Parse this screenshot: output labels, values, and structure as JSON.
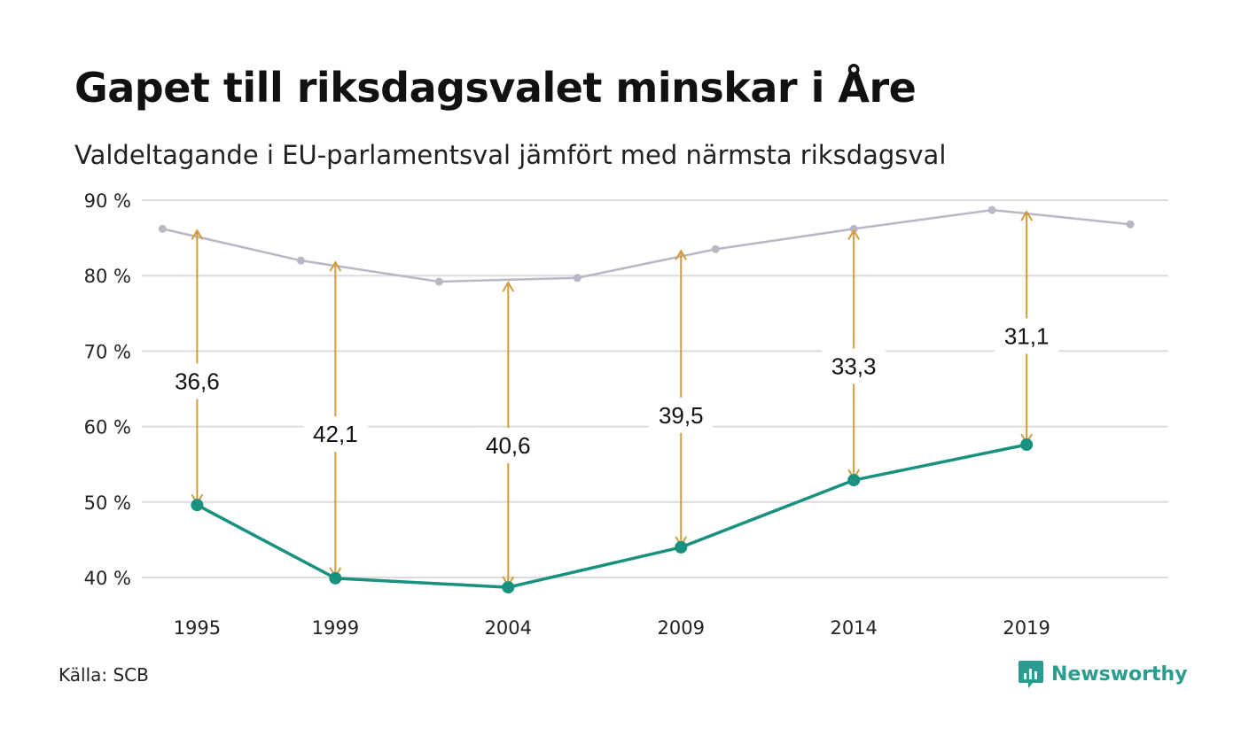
{
  "title": "Gapet till riksdagsvalet minskar i Åre",
  "subtitle": "Valdeltagande i EU-parlamentsval jämfört med närmsta riksdagsval",
  "source": "Källa: SCB",
  "brand": {
    "name": "Newsworthy",
    "icon": "newsworthy-logo-icon"
  },
  "colors": {
    "eu": "#18917f",
    "riksdag": "#b9b7c4",
    "gap": "#d39b3f",
    "grid": "#dcdcdc"
  },
  "chart_data": {
    "type": "line",
    "x_range": [
      1993.4,
      2023.1
    ],
    "ylim": [
      35,
      90
    ],
    "y_ticks": [
      {
        "value": 40,
        "label": "40 %"
      },
      {
        "value": 50,
        "label": "50 %"
      },
      {
        "value": 60,
        "label": "60 %"
      },
      {
        "value": 70,
        "label": "70 %"
      },
      {
        "value": 80,
        "label": "80 %"
      },
      {
        "value": 90,
        "label": "90 %"
      }
    ],
    "x_ticks": [
      {
        "value": 1995,
        "label": "1995"
      },
      {
        "value": 1999,
        "label": "1999"
      },
      {
        "value": 2004,
        "label": "2004"
      },
      {
        "value": 2009,
        "label": "2009"
      },
      {
        "value": 2014,
        "label": "2014"
      },
      {
        "value": 2019,
        "label": "2019"
      }
    ],
    "grid": true,
    "legend": "none",
    "series": [
      {
        "key": "riksdag",
        "x": [
          1994,
          1998,
          2002,
          2006,
          2010,
          2014,
          2018,
          2022
        ],
        "values": [
          86.2,
          82.0,
          79.2,
          79.7,
          83.5,
          86.2,
          88.7,
          86.8
        ]
      },
      {
        "key": "eu",
        "x": [
          1995,
          1999,
          2004,
          2009,
          2014,
          2019
        ],
        "values": [
          49.6,
          39.9,
          38.7,
          44.0,
          52.9,
          57.6
        ]
      }
    ],
    "gaps": [
      {
        "x": 1995,
        "from": 49.6,
        "to": 86.2,
        "label": "36,6",
        "label_y": 66.0
      },
      {
        "x": 1999,
        "from": 39.9,
        "to": 82.0,
        "label": "42,1",
        "label_y": 59.0
      },
      {
        "x": 2004,
        "from": 38.7,
        "to": 79.3,
        "label": "40,6",
        "label_y": 57.5
      },
      {
        "x": 2009,
        "from": 44.0,
        "to": 83.5,
        "label": "39,5",
        "label_y": 61.5
      },
      {
        "x": 2014,
        "from": 52.9,
        "to": 86.2,
        "label": "33,3",
        "label_y": 68.0
      },
      {
        "x": 2019,
        "from": 57.6,
        "to": 88.7,
        "label": "31,1",
        "label_y": 72.0
      }
    ]
  }
}
